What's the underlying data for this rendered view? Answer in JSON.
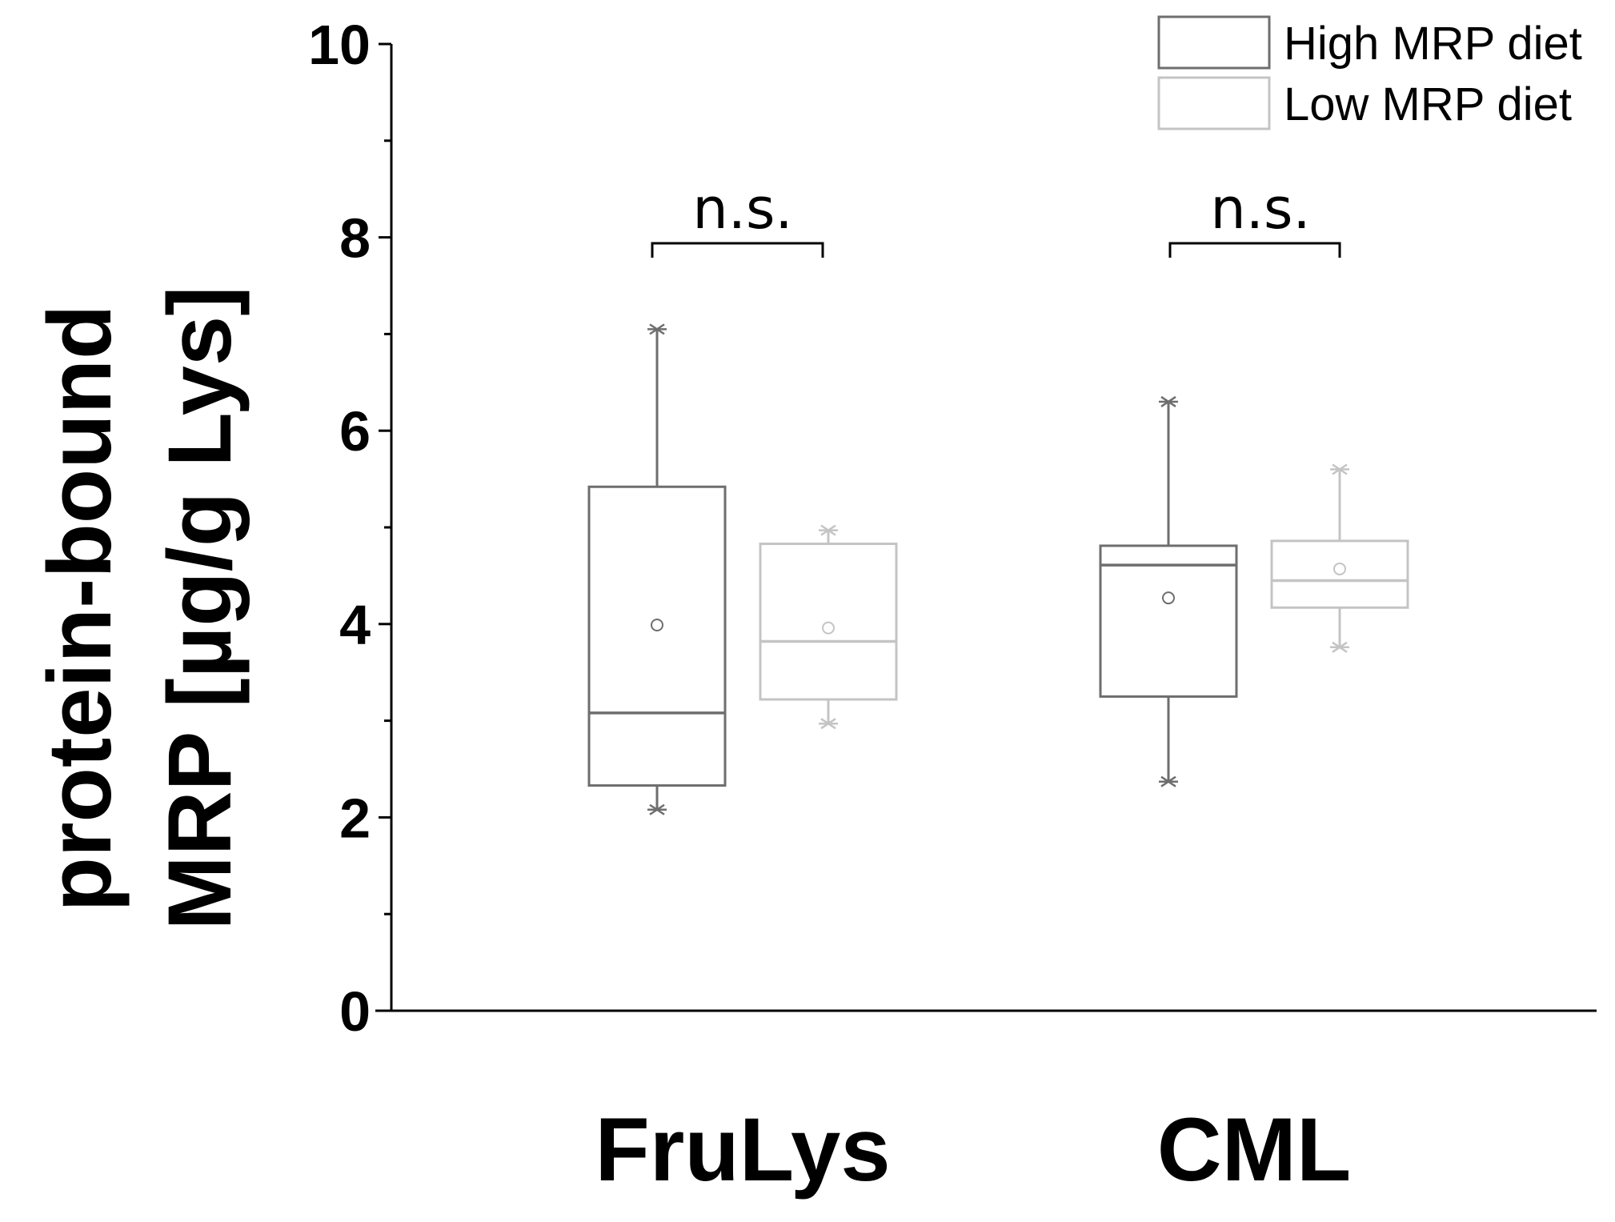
{
  "chart_data": {
    "type": "box",
    "ylabel_lines": [
      "protein-bound",
      "MRP [µg/g Lys]"
    ],
    "ylim": [
      0,
      10
    ],
    "yticks": [
      0,
      2,
      4,
      6,
      8,
      10
    ],
    "categories": [
      "FruLys",
      "CML"
    ],
    "series": [
      {
        "name": "High MRP diet",
        "color": "#6e6e6e",
        "boxes": [
          {
            "category": "FruLys",
            "min": 2.08,
            "q1": 2.33,
            "median": 3.08,
            "q3": 5.42,
            "max": 7.05,
            "mean": 3.99
          },
          {
            "category": "CML",
            "min": 2.37,
            "q1": 3.25,
            "median": 4.61,
            "q3": 4.81,
            "max": 6.3,
            "mean": 4.27
          }
        ]
      },
      {
        "name": "Low MRP diet",
        "color": "#c4c4c4",
        "boxes": [
          {
            "category": "FruLys",
            "min": 2.97,
            "q1": 3.22,
            "median": 3.82,
            "q3": 4.83,
            "max": 4.97,
            "mean": 3.96
          },
          {
            "category": "CML",
            "min": 3.76,
            "q1": 4.17,
            "median": 4.45,
            "q3": 4.86,
            "max": 5.6,
            "mean": 4.57
          }
        ]
      }
    ],
    "annotations": [
      {
        "category": "FruLys",
        "text": "n.s."
      },
      {
        "category": "CML",
        "text": "n.s."
      }
    ],
    "legend_position": "top-right",
    "grid": false
  }
}
